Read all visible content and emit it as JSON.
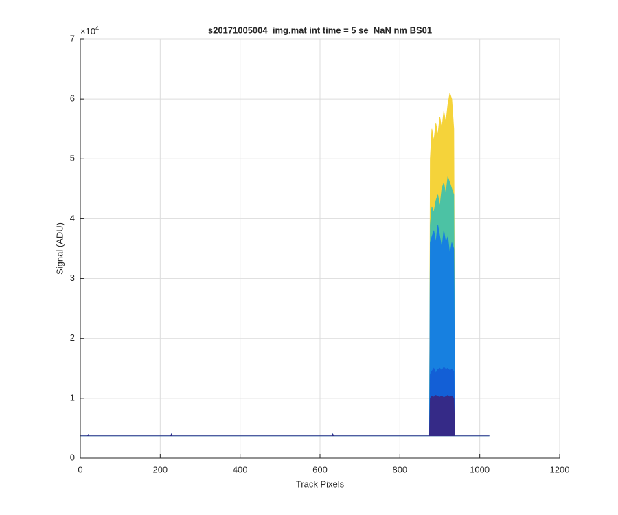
{
  "chart_data": {
    "type": "area",
    "title": "s20171005004_img.mat int time = 5 se  NaN nm BS01",
    "x_label": "Track Pixels",
    "y_label": "Signal (ADU)",
    "y_multiplier": {
      "base": "×10",
      "exponent": "4"
    },
    "xlim": [
      0,
      1200
    ],
    "xticks": [
      0,
      200,
      400,
      600,
      800,
      1000,
      1200
    ],
    "ylim": [
      0,
      70000
    ],
    "yticks": [
      {
        "value": 0,
        "label": "0"
      },
      {
        "value": 10000,
        "label": "1"
      },
      {
        "value": 20000,
        "label": "2"
      },
      {
        "value": 30000,
        "label": "3"
      },
      {
        "value": 40000,
        "label": "4"
      },
      {
        "value": 50000,
        "label": "5"
      },
      {
        "value": 60000,
        "label": "6"
      },
      {
        "value": 70000,
        "label": "7"
      }
    ],
    "grid": true,
    "x": [
      1,
      18,
      20,
      22,
      226,
      228,
      230,
      630,
      632,
      634,
      874,
      876,
      880,
      885,
      890,
      895,
      900,
      905,
      910,
      915,
      920,
      925,
      930,
      935,
      938,
      940,
      1024
    ],
    "series": [
      {
        "color": "#f5d33a",
        "values": [
          3700,
          3700,
          3900,
          3700,
          3700,
          4000,
          3700,
          3700,
          4000,
          3700,
          3700,
          50000,
          55000,
          53000,
          56000,
          54000,
          57000,
          55000,
          58000,
          56000,
          59000,
          61000,
          60000,
          55000,
          3700,
          3700,
          3700
        ]
      },
      {
        "color": "#4cc2a4",
        "values": [
          3700,
          3700,
          3900,
          3700,
          3700,
          4000,
          3700,
          3700,
          4000,
          3700,
          3700,
          39000,
          42000,
          41000,
          43000,
          44000,
          42000,
          45000,
          46000,
          44000,
          47000,
          46000,
          45000,
          44000,
          3700,
          3700,
          3700
        ]
      },
      {
        "color": "#1780e0",
        "values": [
          3700,
          3700,
          3900,
          3700,
          3700,
          4000,
          3700,
          3700,
          4000,
          3700,
          3700,
          36000,
          37000,
          38000,
          36000,
          39000,
          37000,
          35000,
          38000,
          36000,
          37000,
          34000,
          36000,
          35000,
          3700,
          3700,
          3700
        ]
      },
      {
        "color": "#135fd6",
        "values": [
          3700,
          3700,
          3900,
          3700,
          3700,
          4000,
          3700,
          3700,
          4000,
          3700,
          3700,
          14000,
          14500,
          15000,
          14200,
          14800,
          15000,
          14600,
          15200,
          14800,
          15000,
          14600,
          14800,
          14500,
          3700,
          3700,
          3700
        ]
      },
      {
        "color": "#352a87",
        "values": [
          3700,
          3700,
          3900,
          3700,
          3700,
          4000,
          3700,
          3700,
          4000,
          3700,
          3700,
          10000,
          10400,
          10200,
          10500,
          10300,
          10200,
          10400,
          10100,
          10300,
          10500,
          10200,
          10400,
          10000,
          3700,
          3700,
          3700
        ]
      }
    ]
  }
}
